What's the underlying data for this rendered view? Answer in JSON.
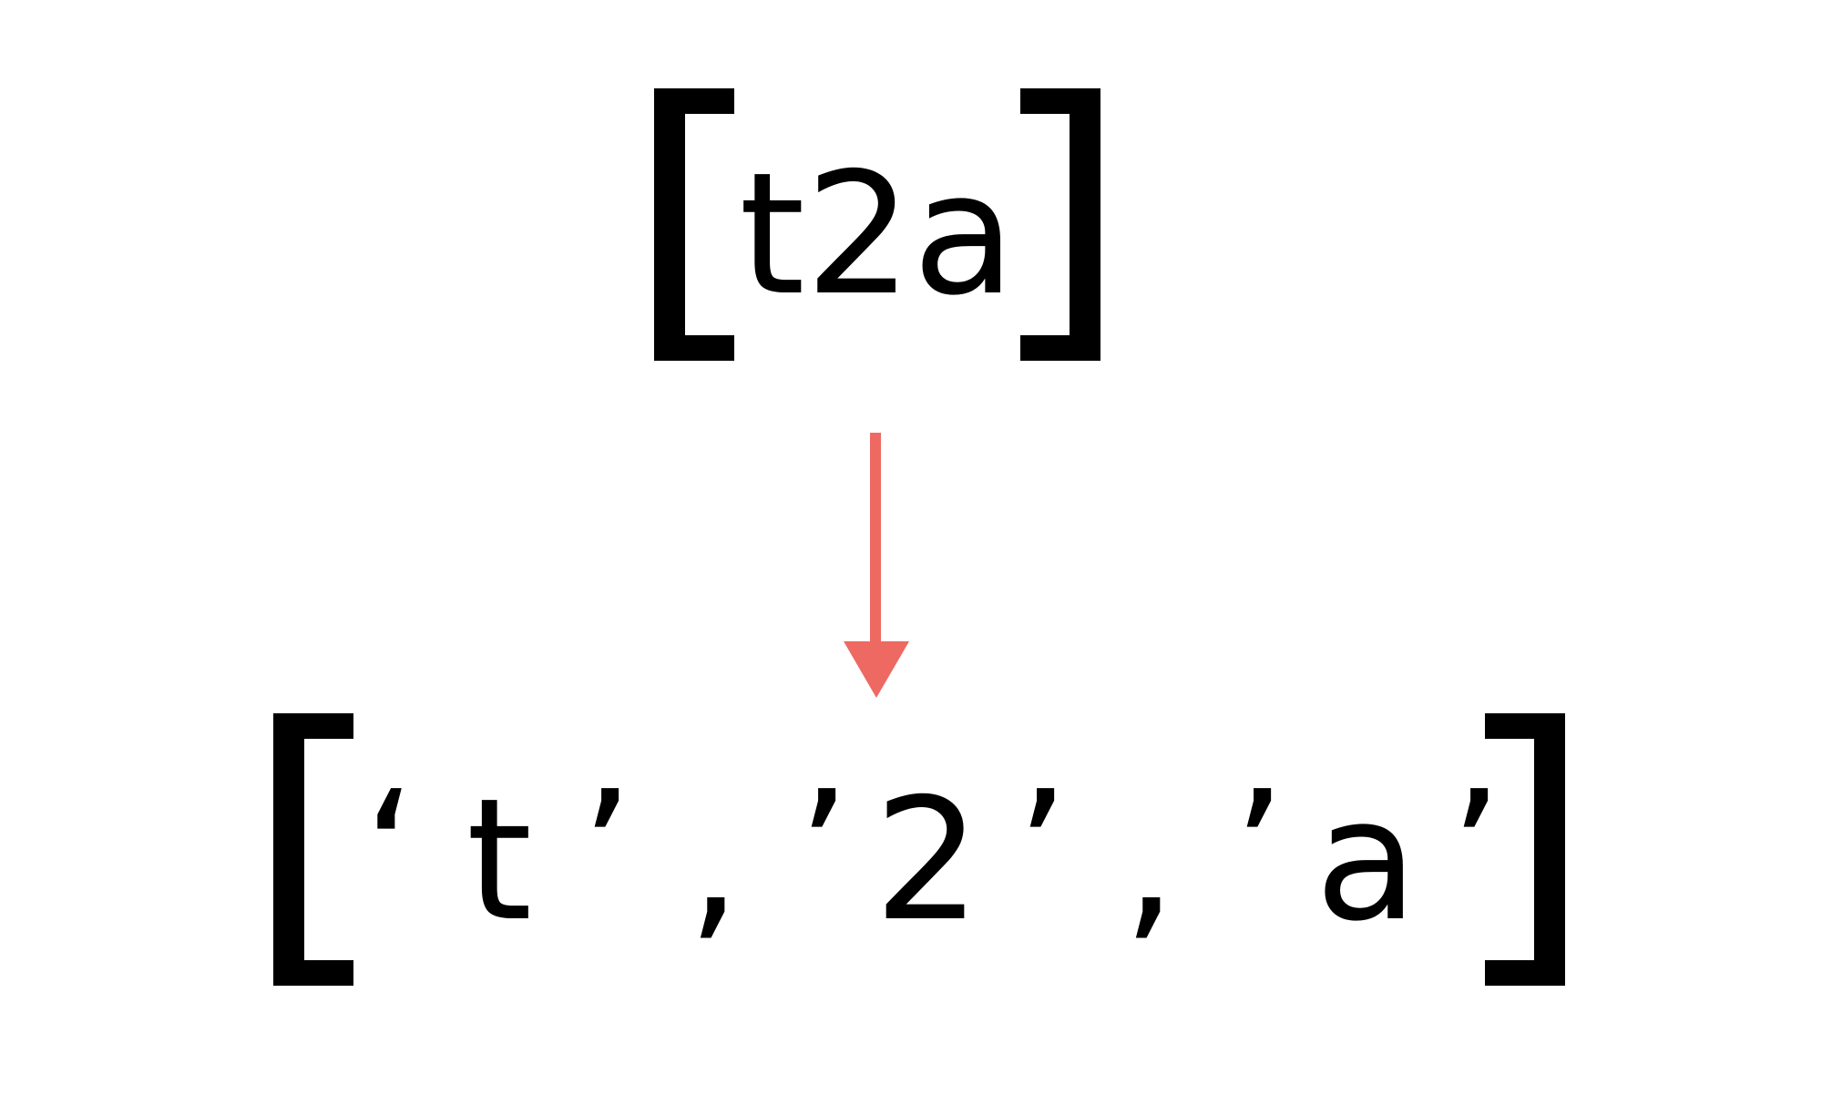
{
  "diagram": {
    "input": {
      "text": "t2a"
    },
    "output": {
      "open_quote_1": "‘",
      "item_1": "t",
      "close_quote_1": "’",
      "separator_1": ",",
      "open_quote_2": "’",
      "item_2": "2",
      "close_quote_2": "’",
      "separator_2": ",",
      "open_quote_3": "’",
      "item_3": "a",
      "close_quote_3": "’"
    },
    "colors": {
      "arrow": "#ee6962",
      "ink": "#000000"
    }
  }
}
